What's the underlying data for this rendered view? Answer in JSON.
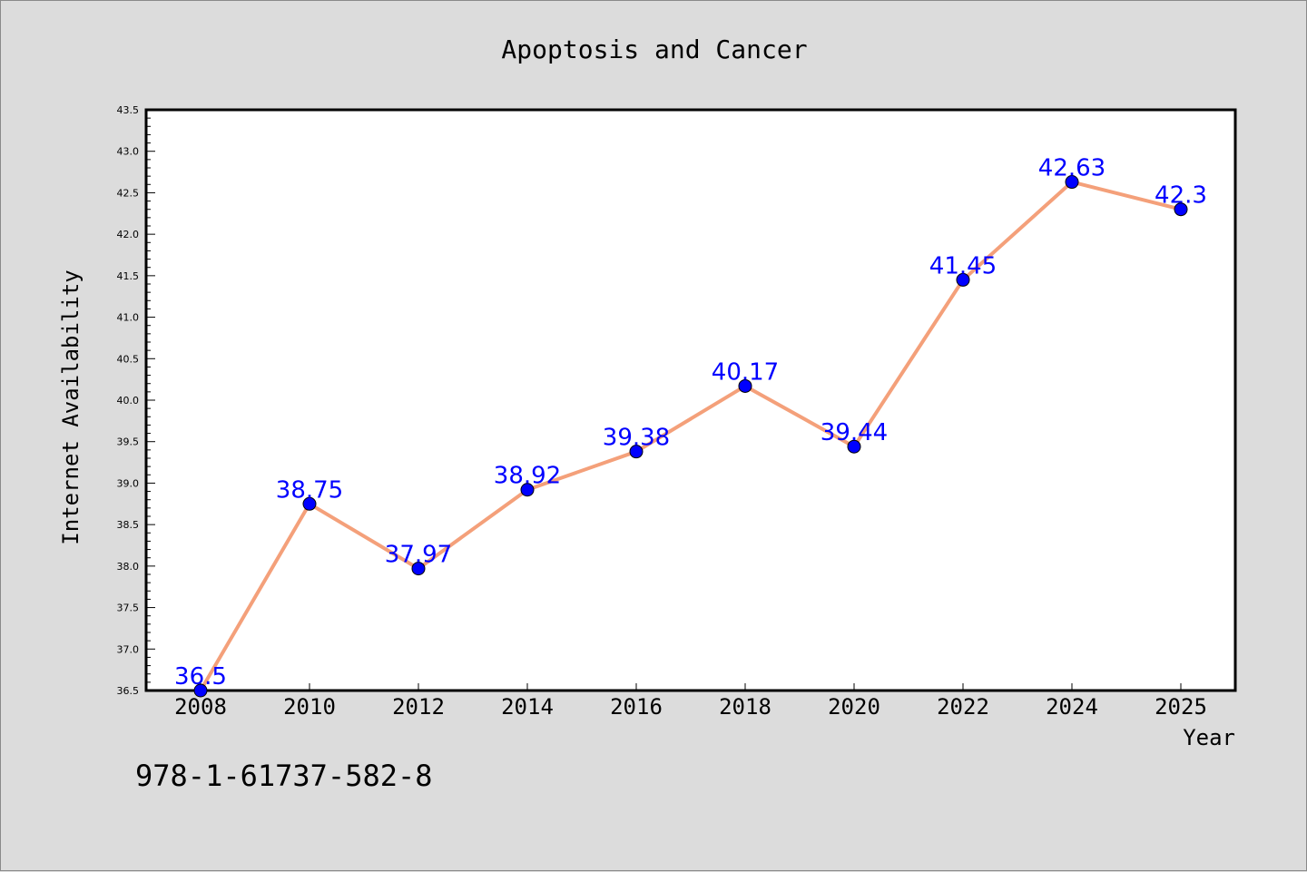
{
  "chart_data": {
    "type": "line",
    "title": "Apoptosis and Cancer",
    "xlabel": "Year",
    "ylabel": "Internet Availability",
    "categories": [
      "2008",
      "2010",
      "2012",
      "2014",
      "2016",
      "2018",
      "2020",
      "2022",
      "2024",
      "2025"
    ],
    "series": [
      {
        "values": [
          36.5,
          38.75,
          37.97,
          38.92,
          39.38,
          40.17,
          39.44,
          41.45,
          42.63,
          42.3
        ],
        "labels": [
          "36.5",
          "38.75",
          "37.97",
          "38.92",
          "39.38",
          "40.17",
          "39.44",
          "41.45",
          "42.63",
          "42.3"
        ],
        "line_color": "#f4a07a",
        "marker_color": "#0000ff"
      }
    ],
    "ylim": [
      36.5,
      43.5
    ],
    "y_ticks": [
      "36.5",
      "37.0",
      "37.5",
      "38.0",
      "38.5",
      "39.0",
      "39.5",
      "40.0",
      "40.5",
      "41.0",
      "41.5",
      "42.0",
      "42.5",
      "43.0",
      "43.5"
    ],
    "grid": false,
    "legend": "none"
  },
  "footer_text": "978-1-61737-582-8",
  "colors": {
    "background": "#dcdcdc",
    "plot_background": "#ffffff",
    "data_label": "#0000ff",
    "text": "#000000"
  }
}
